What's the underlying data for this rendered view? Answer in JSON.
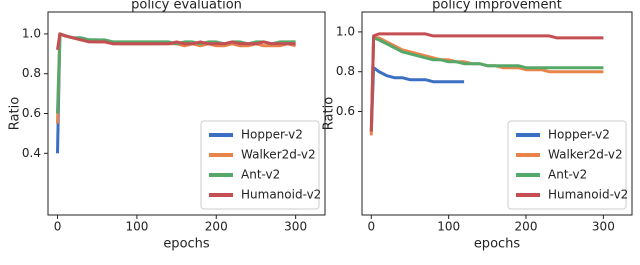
{
  "chart_data": [
    {
      "type": "line",
      "title": "policy evaluation",
      "xlabel": "epochs",
      "ylabel": "Ratio",
      "x": [
        0,
        3,
        10,
        20,
        30,
        40,
        50,
        60,
        70,
        80,
        90,
        100,
        110,
        120,
        130,
        140,
        150,
        160,
        170,
        180,
        190,
        200,
        210,
        220,
        230,
        240,
        250,
        260,
        270,
        280,
        290,
        300
      ],
      "series": [
        {
          "name": "Hopper-v2",
          "color": "#3b6fc4",
          "values": [
            0.4,
            1.0,
            0.99,
            0.98,
            0.98,
            0.97,
            0.97,
            0.96,
            0.96,
            0.95,
            0.95,
            0.95,
            0.95,
            0.95,
            0.95,
            null,
            null,
            null,
            null,
            null,
            null,
            null,
            null,
            null,
            null,
            null,
            null,
            null,
            null,
            null,
            null,
            null
          ]
        },
        {
          "name": "Walker2d-v2",
          "color": "#e8834a",
          "values": [
            0.55,
            1.0,
            0.99,
            0.98,
            0.97,
            0.97,
            0.96,
            0.96,
            0.95,
            0.95,
            0.95,
            0.95,
            0.95,
            0.95,
            0.95,
            0.95,
            0.95,
            0.94,
            0.95,
            0.94,
            0.95,
            0.94,
            0.94,
            0.95,
            0.94,
            0.94,
            0.95,
            0.94,
            0.94,
            0.94,
            0.95,
            0.94
          ]
        },
        {
          "name": "Ant-v2",
          "color": "#55a868",
          "values": [
            0.6,
            1.0,
            0.99,
            0.98,
            0.98,
            0.97,
            0.97,
            0.97,
            0.96,
            0.96,
            0.96,
            0.96,
            0.96,
            0.96,
            0.96,
            0.96,
            0.95,
            0.96,
            0.96,
            0.95,
            0.96,
            0.96,
            0.95,
            0.96,
            0.96,
            0.95,
            0.96,
            0.96,
            0.95,
            0.96,
            0.96,
            0.96
          ]
        },
        {
          "name": "Humanoid-v2",
          "color": "#c44e52",
          "values": [
            0.92,
            1.0,
            0.99,
            0.98,
            0.97,
            0.96,
            0.96,
            0.96,
            0.95,
            0.95,
            0.95,
            0.95,
            0.95,
            0.95,
            0.95,
            0.95,
            0.96,
            0.95,
            0.95,
            0.96,
            0.95,
            0.95,
            0.95,
            0.96,
            0.95,
            0.95,
            0.95,
            0.96,
            0.95,
            0.95,
            0.95,
            0.95
          ]
        }
      ],
      "xlim": [
        -12,
        337
      ],
      "ylim": [
        0.09,
        1.11
      ],
      "xticks": [
        0,
        100,
        200,
        300
      ],
      "yticks": [
        0.4,
        0.6,
        0.8,
        {
          "value": 1,
          "label": "1.0"
        }
      ],
      "legend": "lower right"
    },
    {
      "type": "line",
      "title": "policy improvement",
      "xlabel": "epochs",
      "ylabel": "Ratio",
      "x": [
        0,
        3,
        10,
        20,
        30,
        40,
        50,
        60,
        70,
        80,
        90,
        100,
        110,
        120,
        130,
        140,
        150,
        160,
        170,
        180,
        190,
        200,
        210,
        220,
        230,
        240,
        250,
        260,
        270,
        280,
        290,
        300
      ],
      "series": [
        {
          "name": "Hopper-v2",
          "color": "#3b6fc4",
          "values": [
            0.5,
            0.82,
            0.8,
            0.78,
            0.77,
            0.77,
            0.76,
            0.76,
            0.76,
            0.75,
            0.75,
            0.75,
            0.75,
            0.75,
            null,
            null,
            null,
            null,
            null,
            null,
            null,
            null,
            null,
            null,
            null,
            null,
            null,
            null,
            null,
            null,
            null,
            null
          ]
        },
        {
          "name": "Walker2d-v2",
          "color": "#e8834a",
          "values": [
            0.48,
            0.97,
            0.97,
            0.95,
            0.93,
            0.91,
            0.9,
            0.89,
            0.88,
            0.87,
            0.86,
            0.86,
            0.85,
            0.85,
            0.84,
            0.84,
            0.83,
            0.83,
            0.82,
            0.82,
            0.82,
            0.81,
            0.81,
            0.81,
            0.8,
            0.8,
            0.8,
            0.8,
            0.8,
            0.8,
            0.8,
            0.8
          ]
        },
        {
          "name": "Ant-v2",
          "color": "#55a868",
          "values": [
            0.5,
            0.97,
            0.96,
            0.94,
            0.92,
            0.9,
            0.89,
            0.88,
            0.87,
            0.86,
            0.86,
            0.85,
            0.85,
            0.84,
            0.84,
            0.84,
            0.83,
            0.83,
            0.83,
            0.83,
            0.83,
            0.82,
            0.82,
            0.82,
            0.82,
            0.82,
            0.82,
            0.82,
            0.82,
            0.82,
            0.82,
            0.82
          ]
        },
        {
          "name": "Humanoid-v2",
          "color": "#c44e52",
          "values": [
            0.5,
            0.98,
            0.99,
            0.99,
            0.99,
            0.99,
            0.99,
            0.99,
            0.99,
            0.98,
            0.98,
            0.98,
            0.98,
            0.98,
            0.98,
            0.98,
            0.98,
            0.98,
            0.98,
            0.98,
            0.98,
            0.98,
            0.98,
            0.98,
            0.98,
            0.97,
            0.97,
            0.97,
            0.97,
            0.97,
            0.97,
            0.97
          ]
        }
      ],
      "xlim": [
        -12,
        337
      ],
      "ylim": [
        0.08,
        1.1
      ],
      "xticks": [
        0,
        100,
        200,
        300
      ],
      "yticks": [
        0.6,
        0.8,
        {
          "value": 1,
          "label": "1.0"
        }
      ],
      "legend": "lower right"
    }
  ]
}
